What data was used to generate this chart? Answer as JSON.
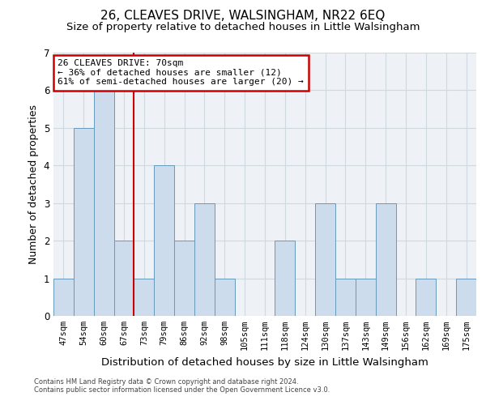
{
  "title": "26, CLEAVES DRIVE, WALSINGHAM, NR22 6EQ",
  "subtitle": "Size of property relative to detached houses in Little Walsingham",
  "xlabel": "Distribution of detached houses by size in Little Walsingham",
  "ylabel": "Number of detached properties",
  "footnote1": "Contains HM Land Registry data © Crown copyright and database right 2024.",
  "footnote2": "Contains public sector information licensed under the Open Government Licence v3.0.",
  "categories": [
    "47sqm",
    "54sqm",
    "60sqm",
    "67sqm",
    "73sqm",
    "79sqm",
    "86sqm",
    "92sqm",
    "98sqm",
    "105sqm",
    "111sqm",
    "118sqm",
    "124sqm",
    "130sqm",
    "137sqm",
    "143sqm",
    "149sqm",
    "156sqm",
    "162sqm",
    "169sqm",
    "175sqm"
  ],
  "bar_values": [
    1,
    5,
    6,
    2,
    1,
    4,
    2,
    3,
    1,
    0,
    0,
    2,
    0,
    3,
    1,
    1,
    3,
    0,
    1,
    0,
    1
  ],
  "bar_color": "#ccdcec",
  "bar_edge_color": "#6699bb",
  "grid_color": "#d0d8e0",
  "bg_color": "#eef2f6",
  "ylim": [
    0,
    7
  ],
  "yticks": [
    0,
    1,
    2,
    3,
    4,
    5,
    6,
    7
  ],
  "property_label": "26 CLEAVES DRIVE: 70sqm",
  "annotation_line1": "← 36% of detached houses are smaller (12)",
  "annotation_line2": "61% of semi-detached houses are larger (20) →",
  "vline_x": 3.5,
  "annotation_box_color": "#ffffff",
  "annotation_box_edge": "#cc0000",
  "vline_color": "#cc0000",
  "title_fontsize": 11,
  "subtitle_fontsize": 9.5,
  "ylabel_fontsize": 9,
  "xlabel_fontsize": 9.5,
  "tick_fontsize": 7.5,
  "annotation_fontsize": 8
}
